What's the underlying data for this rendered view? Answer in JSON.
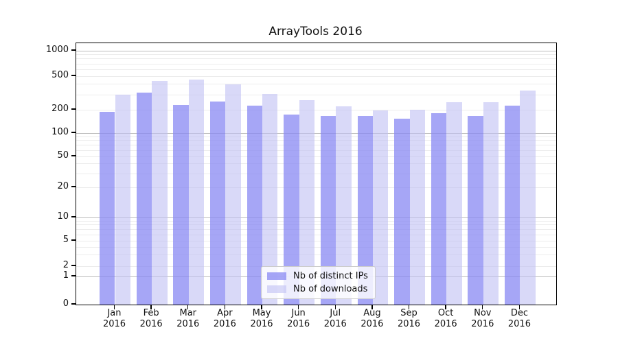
{
  "figure": {
    "title": "ArrayTools 2016",
    "background": "#ffffff"
  },
  "colors": {
    "distinct_ips_fill": "rgba(136,136,243,0.75)",
    "downloads_fill": "rgba(192,192,243,0.60)",
    "distinct_ips_apparent": "#a6a6f4",
    "downloads_apparent": "#d8d8f8",
    "major_grid": "#bcbcbc",
    "minor_grid": "#ececec",
    "axis": "#000000",
    "text": "#111111"
  },
  "legend": {
    "items": [
      {
        "label": "Nb of distinct IPs"
      },
      {
        "label": "Nb of downloads"
      }
    ]
  },
  "y_axis": {
    "tick_labels": [
      "1000",
      "500",
      "200",
      "100",
      "50",
      "20",
      "10",
      "5",
      "2",
      "1",
      "0"
    ],
    "tick_values": [
      1000,
      500,
      200,
      100,
      50,
      20,
      10,
      5,
      2,
      1,
      0
    ]
  },
  "x_axis": {
    "ticks": [
      {
        "month": "Jan",
        "year": "2016"
      },
      {
        "month": "Feb",
        "year": "2016"
      },
      {
        "month": "Mar",
        "year": "2016"
      },
      {
        "month": "Apr",
        "year": "2016"
      },
      {
        "month": "May",
        "year": "2016"
      },
      {
        "month": "Jun",
        "year": "2016"
      },
      {
        "month": "Jul",
        "year": "2016"
      },
      {
        "month": "Aug",
        "year": "2016"
      },
      {
        "month": "Sep",
        "year": "2016"
      },
      {
        "month": "Oct",
        "year": "2016"
      },
      {
        "month": "Nov",
        "year": "2016"
      },
      {
        "month": "Dec",
        "year": "2016"
      }
    ]
  },
  "chart_data": {
    "type": "bar",
    "title": "ArrayTools 2016",
    "categories": [
      "Jan 2016",
      "Feb 2016",
      "Mar 2016",
      "Apr 2016",
      "May 2016",
      "Jun 2016",
      "Jul 2016",
      "Aug 2016",
      "Sep 2016",
      "Oct 2016",
      "Nov 2016",
      "Dec 2016"
    ],
    "series": [
      {
        "name": "Nb of distinct IPs",
        "values": [
          190,
          320,
          230,
          250,
          222,
          173,
          166,
          167,
          152,
          180,
          168,
          222
        ]
      },
      {
        "name": "Nb of downloads",
        "values": [
          300,
          440,
          455,
          400,
          305,
          260,
          218,
          197,
          200,
          245,
          245,
          337
        ]
      }
    ],
    "yscale": "symlog",
    "ylim": [
      0,
      1100
    ],
    "grid": "on",
    "legend_position": "bottom-center-inside"
  }
}
